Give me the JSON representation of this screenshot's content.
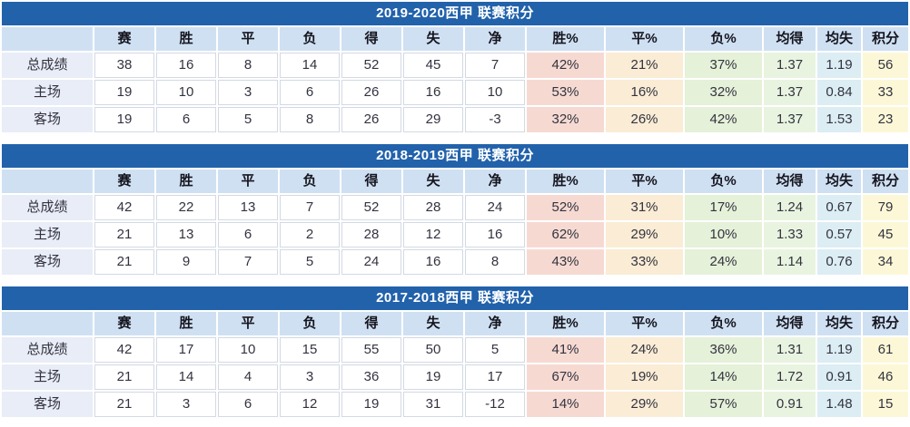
{
  "colors": {
    "title_bar": "#2262ab",
    "title_text": "#ffffff",
    "header_row": "#cfe0f2",
    "label_column": "#e9edf7",
    "plain_cell": "#ffffff",
    "grid_line": "#d3d9e3",
    "win_pct_column": "#f6dad2",
    "draw_pct_column": "#faecd5",
    "loss_pct_column": "#e5f1d8",
    "avg_goals_for_column": "#e9f4e0",
    "avg_goals_against_column": "#dcedf4",
    "points_column": "#fcf8d7",
    "header_text": "#15151f",
    "cell_text": "#333340"
  },
  "chart_data": [
    {
      "type": "table",
      "title": "2019-2020西甲 联赛积分",
      "columns": [
        "",
        "赛",
        "胜",
        "平",
        "负",
        "得",
        "失",
        "净",
        "胜%",
        "平%",
        "负%",
        "均得",
        "均失",
        "积分"
      ],
      "rows": [
        [
          "总成绩",
          "38",
          "16",
          "8",
          "14",
          "52",
          "45",
          "7",
          "42%",
          "21%",
          "37%",
          "1.37",
          "1.19",
          "56"
        ],
        [
          "主场",
          "19",
          "10",
          "3",
          "6",
          "26",
          "16",
          "10",
          "53%",
          "16%",
          "32%",
          "1.37",
          "0.84",
          "33"
        ],
        [
          "客场",
          "19",
          "6",
          "5",
          "8",
          "26",
          "29",
          "-3",
          "32%",
          "26%",
          "42%",
          "1.37",
          "1.53",
          "23"
        ]
      ]
    },
    {
      "type": "table",
      "title": "2018-2019西甲 联赛积分",
      "columns": [
        "",
        "赛",
        "胜",
        "平",
        "负",
        "得",
        "失",
        "净",
        "胜%",
        "平%",
        "负%",
        "均得",
        "均失",
        "积分"
      ],
      "rows": [
        [
          "总成绩",
          "42",
          "22",
          "13",
          "7",
          "52",
          "28",
          "24",
          "52%",
          "31%",
          "17%",
          "1.24",
          "0.67",
          "79"
        ],
        [
          "主场",
          "21",
          "13",
          "6",
          "2",
          "28",
          "12",
          "16",
          "62%",
          "29%",
          "10%",
          "1.33",
          "0.57",
          "45"
        ],
        [
          "客场",
          "21",
          "9",
          "7",
          "5",
          "24",
          "16",
          "8",
          "43%",
          "33%",
          "24%",
          "1.14",
          "0.76",
          "34"
        ]
      ]
    },
    {
      "type": "table",
      "title": "2017-2018西甲 联赛积分",
      "columns": [
        "",
        "赛",
        "胜",
        "平",
        "负",
        "得",
        "失",
        "净",
        "胜%",
        "平%",
        "负%",
        "均得",
        "均失",
        "积分"
      ],
      "rows": [
        [
          "总成绩",
          "42",
          "17",
          "10",
          "15",
          "55",
          "50",
          "5",
          "41%",
          "24%",
          "36%",
          "1.31",
          "1.19",
          "61"
        ],
        [
          "主场",
          "21",
          "14",
          "4",
          "3",
          "36",
          "19",
          "17",
          "67%",
          "19%",
          "14%",
          "1.72",
          "0.91",
          "46"
        ],
        [
          "客场",
          "21",
          "3",
          "6",
          "12",
          "19",
          "31",
          "-12",
          "14%",
          "29%",
          "57%",
          "0.91",
          "1.48",
          "15"
        ]
      ]
    }
  ]
}
